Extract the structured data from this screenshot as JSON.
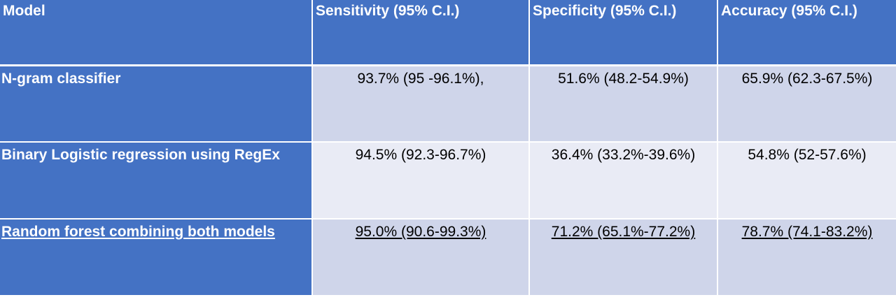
{
  "table": {
    "headers": [
      "Model",
      "Sensitivity (95% C.I.)",
      "Specificity (95% C.I.)",
      "Accuracy (95% C.I.)"
    ],
    "rows": [
      {
        "model": "N-gram classifier",
        "sensitivity": "93.7% (95 -96.1%),",
        "specificity": "51.6% (48.2-54.9%)",
        "accuracy": "65.9% (62.3-67.5%)"
      },
      {
        "model": "Binary Logistic regression using RegEx",
        "sensitivity": "94.5% (92.3-96.7%)",
        "specificity": "36.4% (33.2%-39.6%)",
        "accuracy": "54.8% (52-57.6%)"
      },
      {
        "model": "Random forest combining both models",
        "sensitivity": "95.0% (90.6-99.3%)",
        "specificity": "71.2% (65.1%-77.2%)",
        "accuracy": "78.7% (74.1-83.2%)"
      }
    ]
  },
  "colors": {
    "header_bg": "#4472C4",
    "row_odd_bg": "#CFD5EA",
    "row_even_bg": "#E9EBF5",
    "header_text": "#FFFFFF"
  }
}
